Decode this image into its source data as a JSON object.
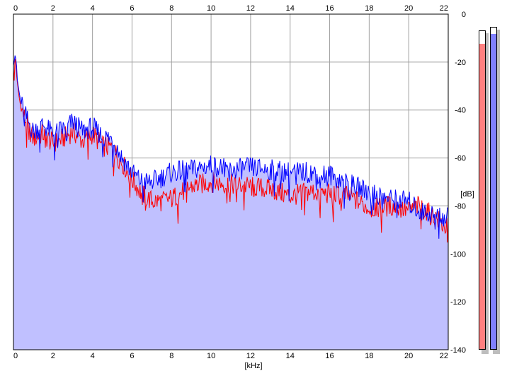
{
  "chart_data": {
    "type": "line",
    "xlabel": "[kHz]",
    "ylabel": "[dB]",
    "xlim": [
      0,
      22
    ],
    "ylim": [
      -140,
      0
    ],
    "x_ticks": [
      0,
      2,
      4,
      6,
      8,
      10,
      12,
      14,
      16,
      18,
      20,
      22
    ],
    "y_ticks": [
      0,
      -20,
      -40,
      -60,
      -80,
      -100,
      -120,
      -140
    ],
    "y_tick_labels": [
      "0",
      "-20",
      "-40",
      "-60",
      "-80",
      "-100",
      "-120",
      "-140"
    ],
    "grid": true,
    "fill_color": "#c0c0ff",
    "series": [
      {
        "color": "#ff0000",
        "x": [
          0,
          0.1,
          0.2,
          0.35,
          0.5,
          0.75,
          1.0,
          1.5,
          2.0,
          2.5,
          3.0,
          3.5,
          4.0,
          4.5,
          5.0,
          5.5,
          6.0,
          6.5,
          7.0,
          7.5,
          8.0,
          9.0,
          10.0,
          11.0,
          12.0,
          13.0,
          14.0,
          15.0,
          16.0,
          17.0,
          18.0,
          19.0,
          20.0,
          20.5,
          21.0,
          21.5,
          22.0
        ],
        "values": [
          -22,
          -18,
          -30,
          -38,
          -42,
          -47,
          -52,
          -50,
          -54,
          -52,
          -49,
          -53,
          -50,
          -55,
          -56,
          -62,
          -69,
          -75,
          -78,
          -78,
          -77,
          -72,
          -70,
          -71,
          -72,
          -73,
          -76,
          -74,
          -75,
          -76,
          -81,
          -80,
          -82,
          -80,
          -83,
          -86,
          -90
        ]
      },
      {
        "color": "#0000ff",
        "x": [
          0,
          0.1,
          0.2,
          0.35,
          0.5,
          0.75,
          1.0,
          1.5,
          2.0,
          2.5,
          3.0,
          3.5,
          4.0,
          4.5,
          5.0,
          5.5,
          6.0,
          6.5,
          7.0,
          7.5,
          8.0,
          9.0,
          10.0,
          11.0,
          12.0,
          13.0,
          14.0,
          15.0,
          16.0,
          17.0,
          18.0,
          19.0,
          20.0,
          20.5,
          21.0,
          21.5,
          22.0
        ],
        "values": [
          -20,
          -16,
          -28,
          -36,
          -40,
          -45,
          -49,
          -46,
          -50,
          -48,
          -45,
          -49,
          -47,
          -51,
          -52,
          -60,
          -66,
          -70,
          -70,
          -68,
          -66,
          -65,
          -63,
          -65,
          -64,
          -65,
          -66,
          -66,
          -67,
          -71,
          -74,
          -77,
          -78,
          -82,
          -83,
          -84,
          -85
        ]
      }
    ]
  },
  "meters": [
    {
      "color": "#ff8080",
      "level": 0.96
    },
    {
      "color": "#8080ff",
      "level": 0.98
    }
  ]
}
